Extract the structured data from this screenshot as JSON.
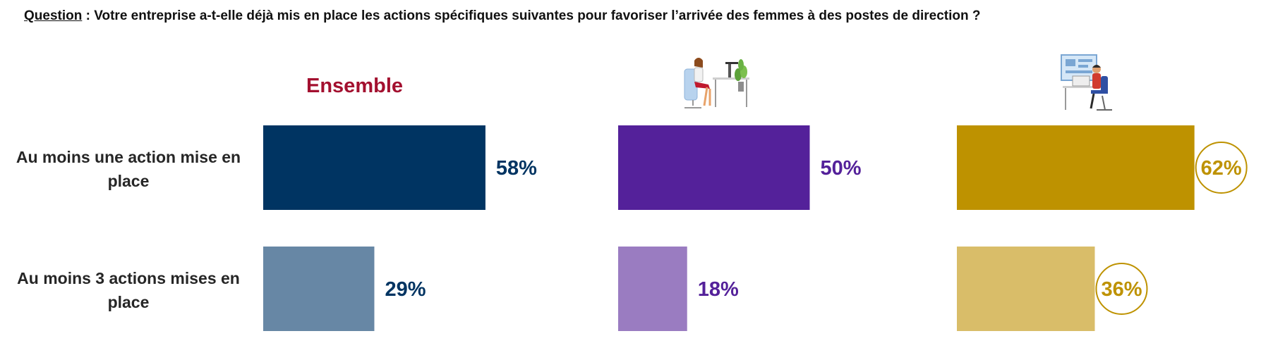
{
  "question": {
    "label": "Question",
    "text": " : Votre entreprise a-t-elle déjà mis en place les actions spécifiques suivantes pour favoriser l’arrivée des femmes à des postes de direction ?"
  },
  "chart_data": {
    "type": "bar",
    "orientation": "horizontal",
    "categories": [
      "Au moins une action mise en place",
      "Au moins 3 actions mises en place"
    ],
    "xlim": [
      0,
      100
    ],
    "grid": false,
    "series": [
      {
        "name": "Ensemble",
        "values": [
          58,
          29
        ],
        "labels": [
          "58%",
          "29%"
        ],
        "colors": [
          "#003462",
          "#6787a5"
        ],
        "label_color": "#003462",
        "icon": "none",
        "circled": false
      },
      {
        "name": "",
        "values": [
          50,
          18
        ],
        "labels": [
          "50%",
          "18%"
        ],
        "colors": [
          "#54219a",
          "#9a7cc1"
        ],
        "label_color": "#54219a",
        "icon": "woman-at-desk-icon",
        "circled": false
      },
      {
        "name": "",
        "values": [
          62,
          36
        ],
        "labels": [
          "62%",
          "36%"
        ],
        "colors": [
          "#be9200",
          "#d9bd69"
        ],
        "label_color": "#be9200",
        "icon": "man-at-desk-icon",
        "circled": true
      }
    ]
  },
  "colors": {
    "ensemble_title": "#a3102f"
  }
}
